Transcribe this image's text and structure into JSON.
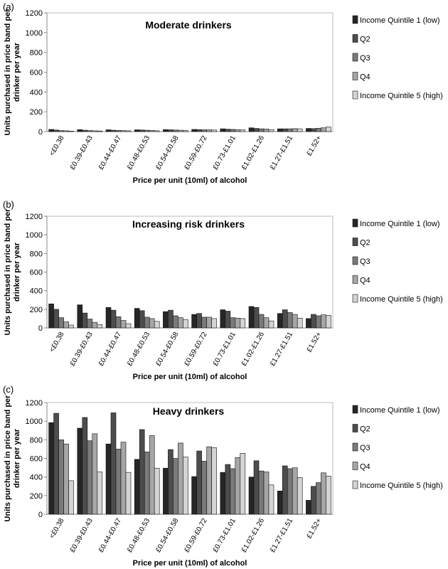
{
  "series_colors": [
    "#262626",
    "#4d4d4d",
    "#7a7a7a",
    "#a6a6a6",
    "#d4d4d4"
  ],
  "chart_data": [
    {
      "panel": "(a)",
      "type": "bar",
      "title": "Moderate drinkers",
      "xlabel": "Price per unit (10ml) of alcohol",
      "ylabel": "Units purchased in price band per drinker per year",
      "ylim": [
        0,
        1200
      ],
      "yticks": [
        0,
        200,
        400,
        600,
        800,
        1000,
        1200
      ],
      "legend_position": "right",
      "grid": false,
      "categories": [
        "<£0.38",
        "£0.39-£0.43",
        "£0.44-£0.47",
        "£0.48-£0.53",
        "£0.54-£0.58",
        "£0.59-£0.72",
        "£0.73-£1.01",
        "£1.02-£1.26",
        "£1.27-£1.51",
        "£1.52+"
      ],
      "series": [
        {
          "name": "Income Quintile 1 (low)",
          "values": [
            22,
            20,
            18,
            18,
            20,
            22,
            28,
            38,
            28,
            32
          ]
        },
        {
          "name": "Q2",
          "values": [
            16,
            14,
            14,
            16,
            18,
            20,
            24,
            32,
            28,
            30
          ]
        },
        {
          "name": "Q3",
          "values": [
            10,
            10,
            12,
            14,
            16,
            18,
            22,
            28,
            28,
            34
          ]
        },
        {
          "name": "Q4",
          "values": [
            8,
            8,
            10,
            12,
            14,
            18,
            20,
            26,
            30,
            38
          ]
        },
        {
          "name": "Income Quintile 5 (high)",
          "values": [
            4,
            6,
            8,
            8,
            12,
            16,
            18,
            20,
            28,
            46
          ]
        }
      ]
    },
    {
      "panel": "(b)",
      "type": "bar",
      "title": "Increasing risk drinkers",
      "xlabel": "Price per unit (10ml) of alcohol",
      "ylabel": "Units purchased in price band per drinker per year",
      "ylim": [
        0,
        1200
      ],
      "yticks": [
        0,
        200,
        400,
        600,
        800,
        1000,
        1200
      ],
      "legend_position": "right",
      "grid": false,
      "categories": [
        "<£0.38",
        "£0.39-£0.43",
        "£0.44-£0.47",
        "£0.48-£0.53",
        "£0.54-£0.58",
        "£0.59-£0.72",
        "£0.73-£1.01",
        "£1.02-£1.26",
        "£1.27-£1.51",
        "£1.52+"
      ],
      "series": [
        {
          "name": "Income Quintile 1 (low)",
          "values": [
            258,
            248,
            220,
            210,
            175,
            145,
            195,
            230,
            155,
            100
          ]
        },
        {
          "name": "Q2",
          "values": [
            200,
            160,
            190,
            185,
            190,
            155,
            180,
            220,
            195,
            145
          ]
        },
        {
          "name": "Q3",
          "values": [
            110,
            95,
            120,
            115,
            130,
            115,
            110,
            145,
            165,
            130
          ]
        },
        {
          "name": "Q4",
          "values": [
            65,
            60,
            80,
            100,
            110,
            115,
            105,
            110,
            145,
            140
          ]
        },
        {
          "name": "Income Quintile 5 (high)",
          "values": [
            30,
            35,
            45,
            70,
            90,
            100,
            100,
            75,
            105,
            135
          ]
        }
      ]
    },
    {
      "panel": "(c)",
      "type": "bar",
      "title": "Heavy drinkers",
      "xlabel": "Price per unit (10ml) of alcohol",
      "ylabel": "Units purchased in price band per drinker per year",
      "ylim": [
        0,
        1200
      ],
      "yticks": [
        0,
        200,
        400,
        600,
        800,
        1000,
        1200
      ],
      "legend_position": "right",
      "grid": false,
      "categories": [
        "<£0.38",
        "£0.39-£0.43",
        "£0.44-£0.47",
        "£0.48-£0.53",
        "£0.54-£0.58",
        "£0.59-£0.72",
        "£0.73-£1.01",
        "£1.02-£1.26",
        "£1.27-£1.51",
        "£1.52+"
      ],
      "series": [
        {
          "name": "Income Quintile 1 (low)",
          "values": [
            985,
            925,
            755,
            590,
            495,
            405,
            450,
            400,
            250,
            150
          ]
        },
        {
          "name": "Q2",
          "values": [
            1085,
            1040,
            1090,
            910,
            695,
            680,
            535,
            575,
            520,
            300
          ]
        },
        {
          "name": "Q3",
          "values": [
            800,
            790,
            700,
            670,
            600,
            570,
            490,
            465,
            490,
            340
          ]
        },
        {
          "name": "Q4",
          "values": [
            755,
            865,
            775,
            845,
            765,
            725,
            610,
            455,
            500,
            445
          ]
        },
        {
          "name": "Income Quintile 5 (high)",
          "values": [
            360,
            455,
            450,
            495,
            615,
            715,
            655,
            315,
            395,
            410
          ]
        }
      ]
    }
  ]
}
